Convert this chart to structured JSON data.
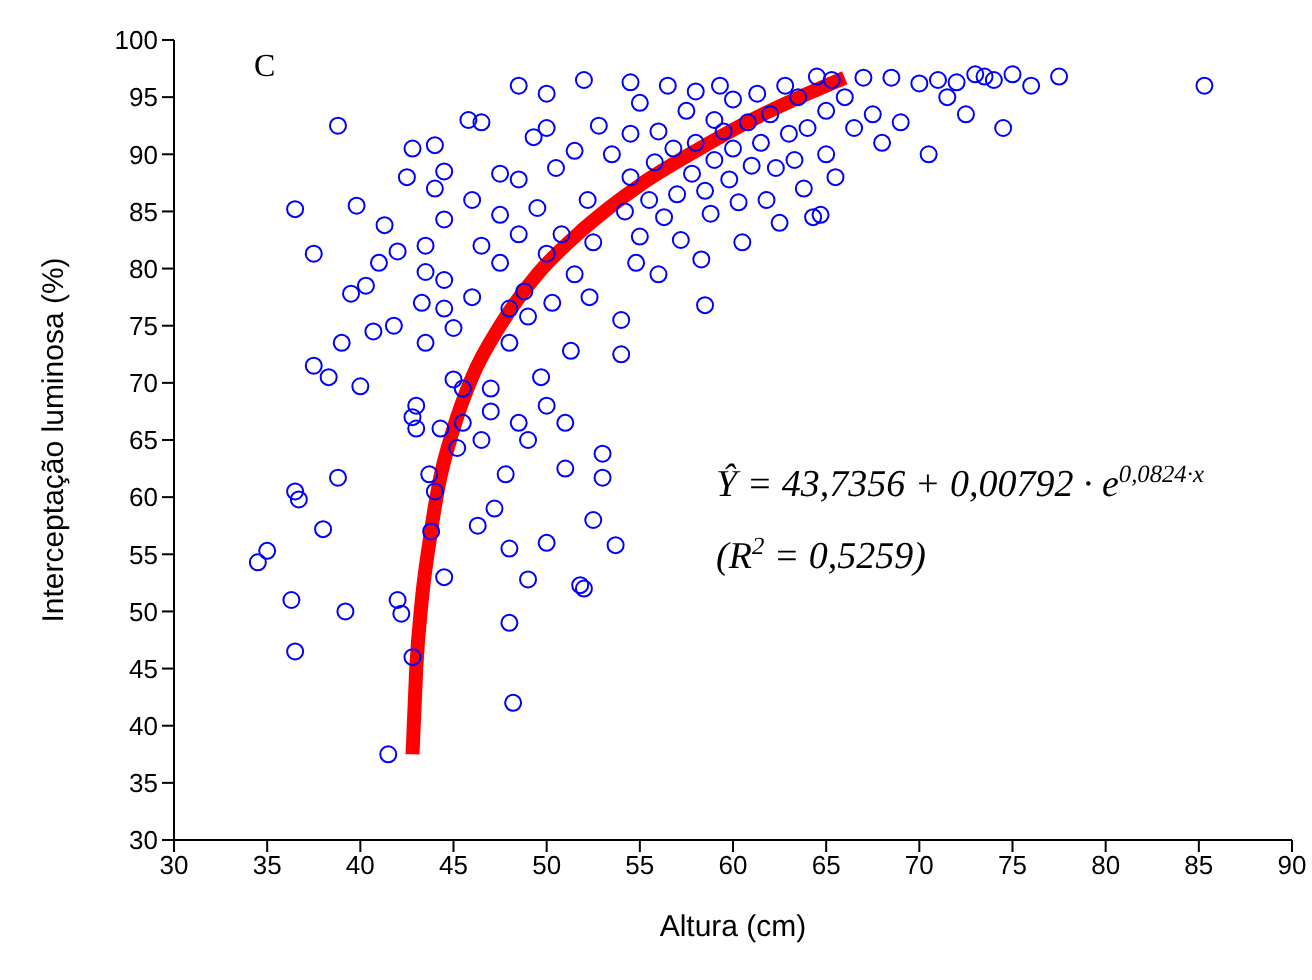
{
  "chart_data": {
    "type": "scatter",
    "xlabel": "Altura (cm)",
    "ylabel": "Interceptação luminosa (%)",
    "annotations": [
      "C",
      "Ŷ = 43,7356 + 0,00792 · e$^{0,0824·x}$",
      "(R$^{2}$ = 0,5259)"
    ],
    "xlim": [
      30,
      90
    ],
    "xticks": [
      30,
      35,
      40,
      45,
      50,
      55,
      60,
      65,
      70,
      75,
      80,
      85,
      90
    ],
    "ylim": [
      30,
      100
    ],
    "yticks": [
      30,
      35,
      40,
      45,
      50,
      55,
      60,
      65,
      70,
      75,
      80,
      85,
      90,
      95,
      100
    ],
    "marker": "circle",
    "series": [
      {
        "color": "#0000ff",
        "x": [
          34.5,
          35,
          36.3,
          36.5,
          36.5,
          36.7,
          36.5,
          37.5,
          37.5,
          38,
          38.3,
          38.8,
          38.8,
          39,
          39.2,
          39.5,
          39.8,
          40,
          40.3,
          40.7,
          41,
          41.3,
          41.5,
          41.8,
          42,
          42,
          42.2,
          42.5,
          42.8,
          42.8,
          42.8,
          43,
          43,
          43.3,
          43.5,
          43.5,
          43.5,
          43.7,
          43.8,
          44,
          44,
          44,
          44.3,
          44.5,
          44.5,
          44.5,
          44.5,
          44.5,
          45,
          45,
          45.2,
          45.5,
          45.5,
          45.8,
          46,
          46,
          46.3,
          46.5,
          46.5,
          46.5,
          47,
          47,
          47.2,
          47.5,
          47.5,
          47.5,
          47.8,
          48,
          48,
          48,
          48,
          48.2,
          48.5,
          48.5,
          48.5,
          48.5,
          48.8,
          49,
          49,
          49,
          49.3,
          49.5,
          49.7,
          50,
          50,
          50,
          50,
          50,
          50.3,
          50.5,
          50.8,
          51,
          51,
          51.3,
          51.5,
          51.5,
          51.8,
          52,
          52,
          52.2,
          52.3,
          52.5,
          52.5,
          52.8,
          53,
          53,
          53.5,
          53.7,
          54,
          54,
          54.2,
          54.5,
          54.5,
          54.5,
          54.8,
          55,
          55,
          55.5,
          55.8,
          56,
          56,
          56.3,
          56.5,
          56.8,
          57,
          57.2,
          57.5,
          57.8,
          58,
          58,
          58.3,
          58.5,
          58.5,
          58.8,
          59,
          59,
          59.3,
          59.5,
          59.8,
          60,
          60,
          60.3,
          60.5,
          60.8,
          61,
          61.3,
          61.5,
          61.8,
          62,
          62.3,
          62.5,
          62.8,
          63,
          63.3,
          63.5,
          63.8,
          64,
          64.3,
          64.5,
          64.7,
          65,
          65,
          65.3,
          65.5,
          66,
          66.5,
          67,
          67.5,
          68,
          68.5,
          69,
          70,
          70.5,
          71,
          71.5,
          72,
          72.5,
          73,
          73.5,
          74,
          74.5,
          75,
          76,
          77.5,
          85.3
        ],
        "values": [
          54.3,
          55.3,
          51,
          46.5,
          60.5,
          59.8,
          85.2,
          81.3,
          71.5,
          57.2,
          70.5,
          61.7,
          92.5,
          73.5,
          50,
          77.8,
          85.5,
          69.7,
          78.5,
          74.5,
          80.5,
          83.8,
          37.5,
          75,
          81.5,
          51,
          49.8,
          88,
          90.5,
          67,
          46,
          66,
          68,
          77,
          79.7,
          82,
          73.5,
          62,
          57,
          90.8,
          87,
          60.5,
          66,
          88.5,
          84.3,
          79,
          76.5,
          53,
          74.8,
          70.3,
          64.3,
          66.5,
          69.5,
          93,
          86,
          77.5,
          57.5,
          82,
          92.8,
          65,
          69.5,
          67.5,
          59,
          80.5,
          88.3,
          84.7,
          62,
          73.5,
          76.5,
          55.5,
          49,
          42,
          96,
          87.8,
          83,
          66.5,
          78,
          75.8,
          65,
          52.8,
          91.5,
          85.3,
          70.5,
          95.3,
          92.3,
          81.3,
          68,
          56,
          77,
          88.8,
          83,
          66.5,
          62.5,
          72.8,
          90.3,
          79.5,
          52.3,
          52,
          96.5,
          86,
          77.5,
          82.3,
          58,
          92.5,
          63.8,
          61.7,
          90,
          55.8,
          72.5,
          75.5,
          85,
          96.3,
          91.8,
          88,
          80.5,
          94.5,
          82.8,
          86,
          89.3,
          92,
          79.5,
          84.5,
          96,
          90.5,
          86.5,
          82.5,
          93.8,
          88.3,
          95.5,
          91,
          80.8,
          86.8,
          76.8,
          84.8,
          93,
          89.5,
          96,
          92,
          87.8,
          94.8,
          90.5,
          85.8,
          82.3,
          92.8,
          89,
          95.3,
          91,
          86,
          93.5,
          88.8,
          84,
          96,
          91.8,
          89.5,
          95,
          87,
          92.3,
          84.5,
          96.8,
          84.7,
          93.8,
          90,
          96.5,
          88,
          95,
          92.3,
          96.7,
          93.5,
          91,
          96.7,
          92.8,
          96.2,
          90,
          96.5,
          95,
          96.3,
          93.5,
          97,
          96.8,
          96.5,
          92.3,
          97,
          96,
          96.8,
          96
        ]
      },
      {
        "type": "line",
        "marker": "none",
        "color": "#ff0000",
        "x": [
          42.8,
          43,
          43.3,
          43.7,
          44.2,
          45,
          46,
          47.5,
          49.5,
          52,
          55,
          58,
          61,
          64,
          66
        ],
        "values": [
          37.5,
          45,
          51,
          56,
          61,
          66,
          70.5,
          75,
          79.5,
          83.5,
          87.3,
          90.3,
          93,
          95.3,
          96.7
        ]
      }
    ]
  }
}
